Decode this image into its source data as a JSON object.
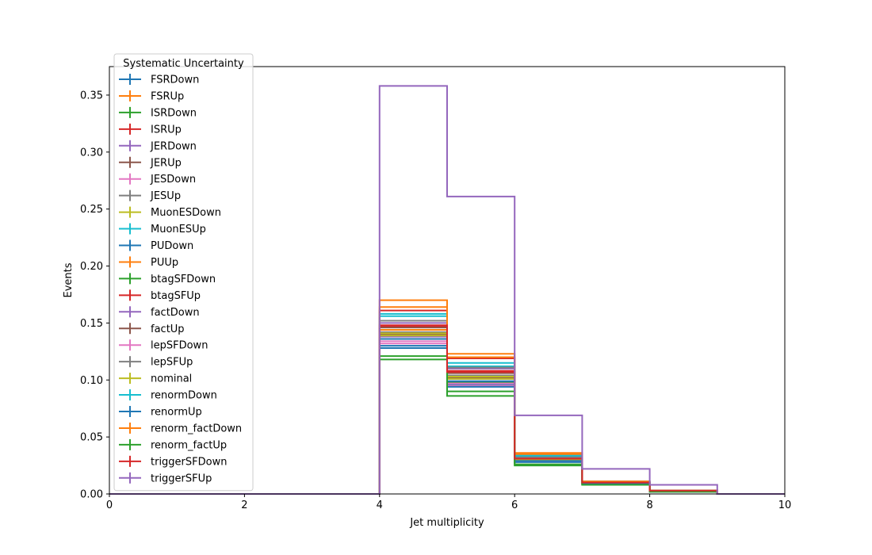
{
  "chart_data": {
    "type": "histogram",
    "xlabel": "Jet multiplicity",
    "ylabel": "Events",
    "xlim": [
      0,
      10
    ],
    "ylim": [
      0,
      0.375
    ],
    "xticks": [
      0,
      2,
      4,
      6,
      8,
      10
    ],
    "yticks": [
      0.0,
      0.05,
      0.1,
      0.15,
      0.2,
      0.25,
      0.3,
      0.35
    ],
    "bin_edges": [
      0,
      1,
      2,
      3,
      4,
      5,
      6,
      7,
      8,
      9,
      10
    ],
    "legend": {
      "title": "Systematic Uncertainty",
      "placement": "upper-left"
    },
    "series": [
      {
        "name": "FSRDown",
        "color": "#1f77b4",
        "values": [
          0,
          0,
          0,
          0,
          0.13,
          0.096,
          0.028,
          0.009,
          0.002,
          0
        ]
      },
      {
        "name": "FSRUp",
        "color": "#ff7f0e",
        "values": [
          0,
          0,
          0,
          0,
          0.144,
          0.104,
          0.031,
          0.01,
          0.003,
          0
        ]
      },
      {
        "name": "ISRDown",
        "color": "#2ca02c",
        "values": [
          0,
          0,
          0,
          0,
          0.136,
          0.098,
          0.029,
          0.009,
          0.002,
          0
        ]
      },
      {
        "name": "ISRUp",
        "color": "#d62728",
        "values": [
          0,
          0,
          0,
          0,
          0.147,
          0.108,
          0.031,
          0.01,
          0.003,
          0
        ]
      },
      {
        "name": "JERDown",
        "color": "#9467bd",
        "values": [
          0,
          0,
          0,
          0,
          0.138,
          0.101,
          0.03,
          0.009,
          0.002,
          0
        ]
      },
      {
        "name": "JERUp",
        "color": "#8c564b",
        "values": [
          0,
          0,
          0,
          0,
          0.14,
          0.102,
          0.03,
          0.009,
          0.002,
          0
        ]
      },
      {
        "name": "JESDown",
        "color": "#e377c2",
        "values": [
          0,
          0,
          0,
          0,
          0.132,
          0.095,
          0.029,
          0.009,
          0.002,
          0
        ]
      },
      {
        "name": "JESUp",
        "color": "#7f7f7f",
        "values": [
          0,
          0,
          0,
          0,
          0.142,
          0.104,
          0.031,
          0.01,
          0.003,
          0
        ]
      },
      {
        "name": "MuonESDown",
        "color": "#bcbd22",
        "values": [
          0,
          0,
          0,
          0,
          0.139,
          0.101,
          0.03,
          0.009,
          0.002,
          0
        ]
      },
      {
        "name": "MuonESUp",
        "color": "#17becf",
        "values": [
          0,
          0,
          0,
          0,
          0.156,
          0.112,
          0.033,
          0.01,
          0.003,
          0
        ]
      },
      {
        "name": "PUDown",
        "color": "#1f77b4",
        "values": [
          0,
          0,
          0,
          0,
          0.128,
          0.094,
          0.028,
          0.009,
          0.002,
          0
        ]
      },
      {
        "name": "PUUp",
        "color": "#ff7f0e",
        "values": [
          0,
          0,
          0,
          0,
          0.17,
          0.123,
          0.036,
          0.011,
          0.003,
          0
        ]
      },
      {
        "name": "btagSFDown",
        "color": "#2ca02c",
        "values": [
          0,
          0,
          0,
          0,
          0.118,
          0.086,
          0.025,
          0.008,
          0.002,
          0
        ]
      },
      {
        "name": "btagSFUp",
        "color": "#d62728",
        "values": [
          0,
          0,
          0,
          0,
          0.161,
          0.119,
          0.034,
          0.011,
          0.003,
          0
        ]
      },
      {
        "name": "factDown",
        "color": "#9467bd",
        "values": [
          0,
          0,
          0,
          0,
          0.15,
          0.11,
          0.032,
          0.01,
          0.003,
          0
        ]
      },
      {
        "name": "factUp",
        "color": "#8c564b",
        "values": [
          0,
          0,
          0,
          0,
          0.146,
          0.106,
          0.031,
          0.01,
          0.003,
          0
        ]
      },
      {
        "name": "lepSFDown",
        "color": "#e377c2",
        "values": [
          0,
          0,
          0,
          0,
          0.134,
          0.097,
          0.029,
          0.009,
          0.002,
          0
        ]
      },
      {
        "name": "lepSFUp",
        "color": "#7f7f7f",
        "values": [
          0,
          0,
          0,
          0,
          0.152,
          0.111,
          0.032,
          0.01,
          0.003,
          0
        ]
      },
      {
        "name": "nominal",
        "color": "#bcbd22",
        "values": [
          0,
          0,
          0,
          0,
          0.141,
          0.103,
          0.03,
          0.009,
          0.002,
          0
        ]
      },
      {
        "name": "renormDown",
        "color": "#17becf",
        "values": [
          0,
          0,
          0,
          0,
          0.158,
          0.115,
          0.034,
          0.011,
          0.003,
          0
        ]
      },
      {
        "name": "renormUp",
        "color": "#1f77b4",
        "values": [
          0,
          0,
          0,
          0,
          0.136,
          0.099,
          0.029,
          0.009,
          0.002,
          0
        ]
      },
      {
        "name": "renorm_factDown",
        "color": "#ff7f0e",
        "values": [
          0,
          0,
          0,
          0,
          0.164,
          0.12,
          0.035,
          0.011,
          0.003,
          0
        ]
      },
      {
        "name": "renorm_factUp",
        "color": "#2ca02c",
        "values": [
          0,
          0,
          0,
          0,
          0.121,
          0.09,
          0.026,
          0.008,
          0.002,
          0
        ]
      },
      {
        "name": "triggerSFDown",
        "color": "#d62728",
        "values": [
          0,
          0,
          0,
          0,
          0.148,
          0.107,
          0.031,
          0.01,
          0.003,
          0
        ]
      },
      {
        "name": "triggerSFUp",
        "color": "#9467bd",
        "values": [
          0,
          0,
          0,
          0,
          0.358,
          0.261,
          0.069,
          0.022,
          0.008,
          0
        ]
      }
    ]
  }
}
